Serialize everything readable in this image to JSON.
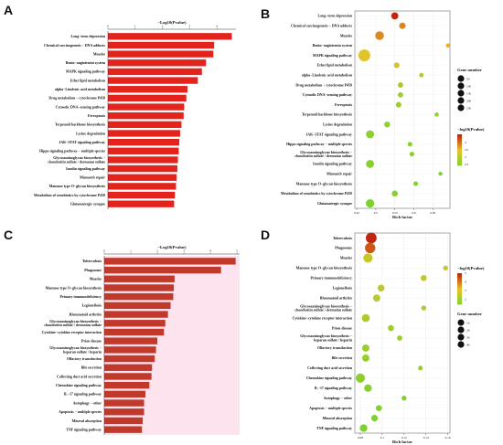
{
  "figure": {
    "panel_letters": [
      "A",
      "B",
      "C",
      "D"
    ]
  },
  "legend": {
    "gene_number_title": "Gene number",
    "pvalue_title": "−log10(Pvalue)"
  },
  "chart_data": [
    {
      "panel": "A",
      "type": "bar",
      "orientation": "horizontal",
      "title": "−Log10(Pvalue)",
      "xlim": [
        0,
        4.7
      ],
      "xticks": [
        "0",
        "1",
        "2",
        "3",
        "4"
      ],
      "color": "#e3231c",
      "categories": [
        "Long−term depression",
        "Chemical carcinogenesis − DNA adducts",
        "Measles",
        "Renin−angiotensin system",
        "MAPK signaling pathway",
        "Ether lipid metabolism",
        "alpha−Linolenic acid metabolism",
        "Drug metabolism − cytochrome P450",
        "Cytosolic DNA−sensing pathway",
        "Ferroptosis",
        "Terpenoid backbone biosynthesis",
        "Lysine degradation",
        "JAK−STAT signaling pathway",
        "Hippo signaling pathway − multiple species",
        "Glycosaminoglycan biosynthesis − chondroitin sulfate / dermatan sulfate",
        "Insulin signaling pathway",
        "Mismatch repair",
        "Mannose type O−glycan biosynthesis",
        "Metabolism of xenobiotics by cytochrome P450",
        "Glutamatergic synapse"
      ],
      "values": [
        4.55,
        3.9,
        3.87,
        3.6,
        3.45,
        3.3,
        2.92,
        2.88,
        2.8,
        2.78,
        2.7,
        2.65,
        2.62,
        2.6,
        2.57,
        2.55,
        2.52,
        2.5,
        2.46,
        2.43
      ]
    },
    {
      "panel": "B",
      "type": "scatter",
      "xlabel": "Rich factor",
      "xlim": [
        0.445,
        0.695
      ],
      "xticks": [
        0.45,
        0.5,
        0.55,
        0.6,
        0.65
      ],
      "categories": [
        "Long−term depression",
        "Chemical carcinogenesis − DNA adducts",
        "Measles",
        "Renin−angiotensin system",
        "MAPK signaling pathway",
        "Ether lipid metabolism",
        "alpha−Linolenic acid metabolism",
        "Drug metabolism − cytochrome P450",
        "Cytosolic DNA−sensing pathway",
        "Ferroptosis",
        "Terpenoid backbone biosynthesis",
        "Lysine degradation",
        "JAK−STAT signaling pathway",
        "Hippo signaling pathway − multiple species",
        "Glycosaminoglycan biosynthesis − chondroitin sulfate / dermatan sulfate",
        "Insulin signaling pathway",
        "Mismatch repair",
        "Mannose type O−glycan biosynthesis",
        "Metabolism of xenobiotics by cytochrome P450",
        "Glutamatergic synapse"
      ],
      "rich_factor": [
        0.55,
        0.57,
        0.51,
        0.69,
        0.47,
        0.555,
        0.62,
        0.565,
        0.565,
        0.56,
        0.66,
        0.53,
        0.485,
        0.59,
        0.595,
        0.485,
        0.67,
        0.605,
        0.55,
        0.485
      ],
      "gene_number": [
        60,
        45,
        110,
        10,
        250,
        30,
        12,
        25,
        25,
        28,
        10,
        35,
        90,
        15,
        15,
        90,
        8,
        14,
        35,
        100
      ],
      "neg_log10_p": [
        4.55,
        3.9,
        3.87,
        3.6,
        3.45,
        3.3,
        2.92,
        2.88,
        2.8,
        2.78,
        2.7,
        2.65,
        2.62,
        2.6,
        2.57,
        2.55,
        2.52,
        2.5,
        2.46,
        2.43
      ],
      "size_legend": {
        "values": [
          50,
          100,
          150,
          200,
          250
        ]
      },
      "color_legend": {
        "ticks": [
          2.5,
          3.0,
          3.5,
          4.0
        ],
        "range": [
          2.43,
          4.55
        ],
        "low_color": "#7cd230",
        "high_color": "#c0260f"
      }
    },
    {
      "panel": "C",
      "type": "bar",
      "orientation": "horizontal",
      "title": "−Log10(Pvalue)",
      "xlim": [
        0,
        5.1
      ],
      "xticks": [
        "0",
        "1",
        "2",
        "3",
        "4",
        "5"
      ],
      "color": "#c0392b",
      "categories": [
        "Tuberculosis",
        "Phagosome",
        "Measles",
        "Mannose type O−glycan biosynthesis",
        "Primary immunodeficiency",
        "Legionellosis",
        "Rheumatoid arthritis",
        "Glycosaminoglycan biosynthesis − chondroitin sulfate / dermatan sulfate",
        "Cytokine−cytokine receptor interaction",
        "Prion disease",
        "Glycosaminoglycan biosynthesis − heparan sulfate / heparin",
        "Olfactory transduction",
        "Bile secretion",
        "Collecting duct acid secretion",
        "Chemokine signaling pathway",
        "IL−17 signaling pathway",
        "Autophagy − other",
        "Apoptosis − multiple species",
        "Mineral absorption",
        "TNF signaling pathway"
      ],
      "values": [
        4.95,
        4.4,
        2.65,
        2.62,
        2.6,
        2.5,
        2.4,
        2.3,
        2.25,
        2.0,
        1.95,
        1.9,
        1.8,
        1.78,
        1.7,
        1.55,
        1.5,
        1.5,
        1.45,
        1.42
      ]
    },
    {
      "panel": "D",
      "type": "scatter",
      "xlabel": "Rich factor",
      "xlim": [
        0.075,
        0.162
      ],
      "xticks": [
        0.08,
        0.1,
        0.12,
        0.14,
        0.16
      ],
      "categories": [
        "Tuberculosis",
        "Phagosome",
        "Measles",
        "Mannose type O−glycan biosynthesis",
        "Primary immunodeficiency",
        "Legionellosis",
        "Rheumatoid arthritis",
        "Glycosaminoglycan biosynthesis − chondroitin sulfate / dermatan sulfate",
        "Cytokine−cytokine receptor interaction",
        "Prion disease",
        "Glycosaminoglycan biosynthesis − heparan sulfate / heparin",
        "Olfactory transduction",
        "Bile secretion",
        "Collecting duct acid secretion",
        "Chemokine signaling pathway",
        "IL−17 signaling pathway",
        "Autophagy − other",
        "Apoptosis − multiple species",
        "Mineral absorption",
        "TNF signaling pathway"
      ],
      "rich_factor": [
        0.09,
        0.089,
        0.087,
        0.158,
        0.138,
        0.099,
        0.095,
        0.138,
        0.085,
        0.108,
        0.116,
        0.085,
        0.085,
        0.135,
        0.08,
        0.087,
        0.12,
        0.097,
        0.093,
        0.083
      ],
      "gene_number": [
        42,
        38,
        28,
        4,
        8,
        12,
        14,
        4,
        18,
        8,
        5,
        14,
        14,
        3,
        28,
        16,
        4,
        8,
        10,
        16
      ],
      "neg_log10_p": [
        4.95,
        4.4,
        2.65,
        2.62,
        2.6,
        2.5,
        2.4,
        2.3,
        2.25,
        2.0,
        1.95,
        1.9,
        1.8,
        1.78,
        1.7,
        1.55,
        1.5,
        1.5,
        1.45,
        1.42
      ],
      "size_legend": {
        "values": [
          10,
          20,
          30,
          40
        ]
      },
      "color_legend": {
        "ticks": [
          2,
          3,
          4,
          5
        ],
        "range": [
          1.42,
          4.95
        ],
        "low_color": "#7cd230",
        "high_color": "#c0260f"
      }
    }
  ]
}
